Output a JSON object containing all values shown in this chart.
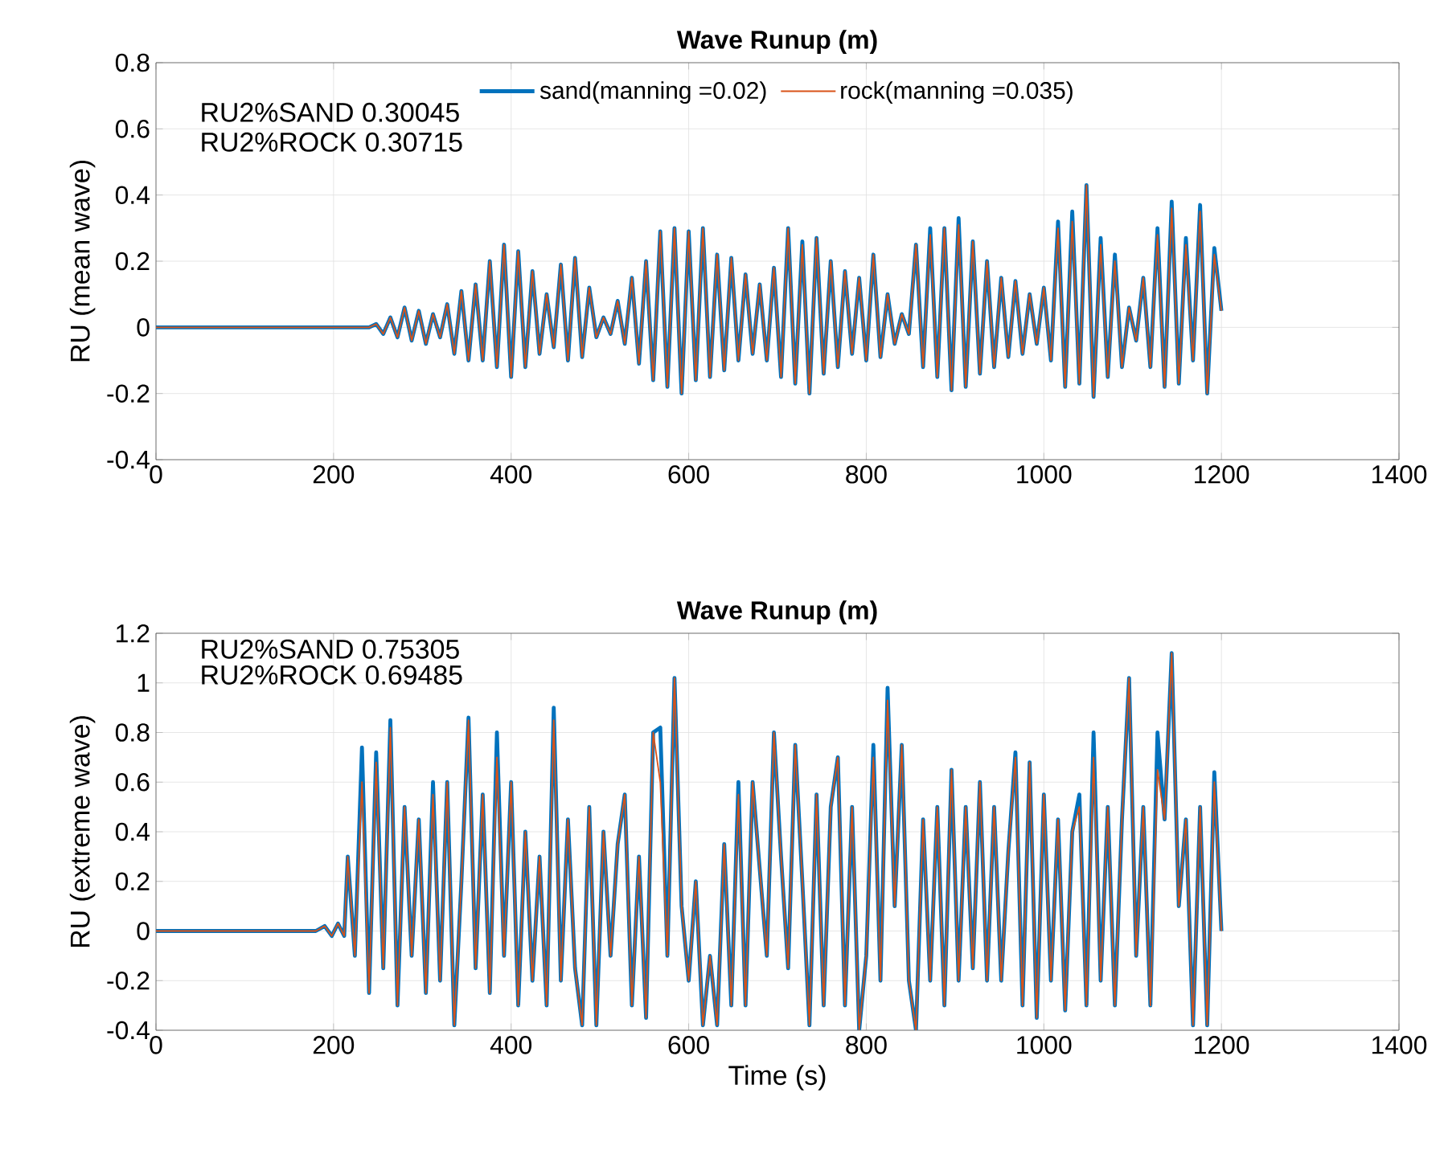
{
  "chart_data": [
    {
      "type": "line",
      "title": "Wave Runup (m)",
      "ylabel": "RU (mean wave)",
      "xlim": [
        0,
        1400
      ],
      "ylim": [
        -0.4,
        0.8
      ],
      "xticks": [
        0,
        200,
        400,
        600,
        800,
        1000,
        1200,
        1400
      ],
      "yticks": [
        -0.4,
        -0.2,
        0,
        0.2,
        0.4,
        0.6,
        0.8
      ],
      "grid": true,
      "legend": "top",
      "annotations": [
        "RU2%SAND 0.30045",
        "RU2%ROCK 0.30715"
      ],
      "x": [
        0,
        200,
        240,
        248,
        256,
        264,
        272,
        280,
        288,
        296,
        304,
        312,
        320,
        328,
        336,
        344,
        352,
        360,
        368,
        376,
        384,
        392,
        400,
        408,
        416,
        424,
        432,
        440,
        448,
        456,
        464,
        472,
        480,
        488,
        496,
        504,
        512,
        520,
        528,
        536,
        544,
        552,
        560,
        568,
        576,
        584,
        592,
        600,
        608,
        616,
        624,
        632,
        640,
        648,
        656,
        664,
        672,
        680,
        688,
        696,
        704,
        712,
        720,
        728,
        736,
        744,
        752,
        760,
        768,
        776,
        784,
        792,
        800,
        808,
        816,
        824,
        832,
        840,
        848,
        856,
        864,
        872,
        880,
        888,
        896,
        904,
        912,
        920,
        928,
        936,
        944,
        952,
        960,
        968,
        976,
        984,
        992,
        1000,
        1008,
        1016,
        1024,
        1032,
        1040,
        1048,
        1056,
        1064,
        1072,
        1080,
        1088,
        1096,
        1104,
        1112,
        1120,
        1128,
        1136,
        1144,
        1152,
        1160,
        1168,
        1176,
        1184,
        1192,
        1200
      ],
      "series": [
        {
          "name": "sand(manning =0.02)",
          "color": "#0072bd",
          "values": [
            0,
            0,
            0,
            0.01,
            -0.02,
            0.03,
            -0.03,
            0.06,
            -0.04,
            0.05,
            -0.05,
            0.04,
            -0.03,
            0.07,
            -0.08,
            0.11,
            -0.1,
            0.13,
            -0.1,
            0.2,
            -0.12,
            0.25,
            -0.15,
            0.23,
            -0.12,
            0.17,
            -0.08,
            0.1,
            -0.06,
            0.19,
            -0.1,
            0.21,
            -0.09,
            0.12,
            -0.03,
            0.03,
            -0.02,
            0.08,
            -0.05,
            0.15,
            -0.11,
            0.2,
            -0.16,
            0.29,
            -0.18,
            0.3,
            -0.2,
            0.29,
            -0.16,
            0.3,
            -0.15,
            0.22,
            -0.13,
            0.21,
            -0.1,
            0.16,
            -0.08,
            0.13,
            -0.1,
            0.18,
            -0.15,
            0.3,
            -0.17,
            0.26,
            -0.2,
            0.27,
            -0.14,
            0.2,
            -0.12,
            0.17,
            -0.08,
            0.15,
            -0.1,
            0.22,
            -0.09,
            0.1,
            -0.05,
            0.04,
            -0.02,
            0.25,
            -0.12,
            0.3,
            -0.15,
            0.3,
            -0.19,
            0.33,
            -0.18,
            0.26,
            -0.14,
            0.2,
            -0.12,
            0.15,
            -0.09,
            0.14,
            -0.08,
            0.1,
            -0.05,
            0.12,
            -0.1,
            0.32,
            -0.18,
            0.35,
            -0.17,
            0.43,
            -0.21,
            0.27,
            -0.15,
            0.22,
            -0.12,
            0.06,
            -0.04,
            0.15,
            -0.12,
            0.3,
            -0.18,
            0.38,
            -0.17,
            0.27,
            -0.1,
            0.37,
            -0.2,
            0.24,
            0.05
          ]
        },
        {
          "name": "rock(manning =0.035)",
          "color": "#d95319",
          "values": [
            0,
            0,
            0,
            0.01,
            -0.02,
            0.03,
            -0.03,
            0.06,
            -0.04,
            0.05,
            -0.05,
            0.04,
            -0.03,
            0.07,
            -0.08,
            0.11,
            -0.1,
            0.13,
            -0.1,
            0.2,
            -0.12,
            0.25,
            -0.15,
            0.23,
            -0.12,
            0.17,
            -0.08,
            0.1,
            -0.06,
            0.19,
            -0.1,
            0.21,
            -0.09,
            0.12,
            -0.03,
            0.03,
            -0.02,
            0.08,
            -0.05,
            0.15,
            -0.11,
            0.2,
            -0.16,
            0.29,
            -0.18,
            0.3,
            -0.2,
            0.29,
            -0.16,
            0.3,
            -0.15,
            0.22,
            -0.13,
            0.21,
            -0.1,
            0.16,
            -0.08,
            0.13,
            -0.1,
            0.18,
            -0.15,
            0.3,
            -0.17,
            0.25,
            -0.2,
            0.27,
            -0.14,
            0.2,
            -0.12,
            0.17,
            -0.08,
            0.15,
            -0.1,
            0.22,
            -0.09,
            0.1,
            -0.05,
            0.04,
            -0.02,
            0.25,
            -0.12,
            0.28,
            -0.15,
            0.3,
            -0.19,
            0.31,
            -0.18,
            0.26,
            -0.14,
            0.2,
            -0.12,
            0.15,
            -0.09,
            0.14,
            -0.08,
            0.1,
            -0.05,
            0.12,
            -0.1,
            0.3,
            -0.18,
            0.32,
            -0.17,
            0.43,
            -0.21,
            0.25,
            -0.15,
            0.2,
            -0.12,
            0.06,
            -0.04,
            0.15,
            -0.12,
            0.28,
            -0.18,
            0.36,
            -0.17,
            0.25,
            -0.1,
            0.35,
            -0.2,
            0.22,
            0.05
          ]
        }
      ]
    },
    {
      "type": "line",
      "title": "Wave Runup (m)",
      "xlabel": "Time (s)",
      "ylabel": "RU (extreme wave)",
      "xlim": [
        0,
        1400
      ],
      "ylim": [
        -0.4,
        1.2
      ],
      "xticks": [
        0,
        200,
        400,
        600,
        800,
        1000,
        1200,
        1400
      ],
      "yticks": [
        -0.4,
        -0.2,
        0,
        0.2,
        0.4,
        0.6,
        0.8,
        1,
        1.2
      ],
      "grid": true,
      "annotations": [
        "RU2%SAND 0.75305",
        "RU2%ROCK 0.69485"
      ],
      "x": [
        0,
        180,
        190,
        198,
        205,
        212,
        216,
        224,
        232,
        240,
        248,
        256,
        264,
        272,
        280,
        288,
        296,
        304,
        312,
        320,
        328,
        336,
        344,
        352,
        360,
        368,
        376,
        384,
        392,
        400,
        408,
        416,
        424,
        432,
        440,
        448,
        456,
        464,
        472,
        480,
        488,
        496,
        504,
        512,
        520,
        528,
        536,
        544,
        552,
        560,
        568,
        576,
        584,
        592,
        600,
        608,
        616,
        624,
        632,
        640,
        648,
        656,
        664,
        672,
        680,
        688,
        696,
        704,
        712,
        720,
        728,
        736,
        744,
        752,
        760,
        768,
        776,
        784,
        792,
        800,
        808,
        816,
        824,
        832,
        840,
        848,
        856,
        864,
        872,
        880,
        888,
        896,
        904,
        912,
        920,
        928,
        936,
        944,
        952,
        960,
        968,
        976,
        984,
        992,
        1000,
        1008,
        1016,
        1024,
        1032,
        1040,
        1048,
        1056,
        1064,
        1072,
        1080,
        1088,
        1096,
        1104,
        1112,
        1120,
        1128,
        1136,
        1144,
        1152,
        1160,
        1168,
        1176,
        1184,
        1192,
        1200
      ],
      "series": [
        {
          "color": "#0072bd",
          "values": [
            0,
            0,
            0.02,
            -0.02,
            0.03,
            -0.02,
            0.3,
            -0.1,
            0.74,
            -0.25,
            0.72,
            -0.15,
            0.85,
            -0.3,
            0.5,
            -0.1,
            0.45,
            -0.25,
            0.6,
            -0.2,
            0.6,
            -0.38,
            0.2,
            0.86,
            -0.15,
            0.55,
            -0.25,
            0.8,
            -0.1,
            0.6,
            -0.3,
            0.4,
            -0.2,
            0.3,
            -0.3,
            0.9,
            -0.2,
            0.45,
            -0.15,
            -0.38,
            0.5,
            -0.38,
            0.4,
            -0.1,
            0.35,
            0.55,
            -0.3,
            0.3,
            -0.35,
            0.8,
            0.82,
            -0.1,
            1.02,
            0.1,
            -0.2,
            0.2,
            -0.38,
            -0.1,
            -0.38,
            0.35,
            -0.3,
            0.6,
            -0.3,
            0.6,
            0.25,
            -0.1,
            0.8,
            0.3,
            -0.15,
            0.75,
            0.2,
            -0.38,
            0.55,
            -0.3,
            0.5,
            0.7,
            -0.3,
            0.5,
            -0.4,
            -0.1,
            0.75,
            -0.2,
            0.98,
            0.1,
            0.75,
            -0.2,
            -0.4,
            0.45,
            -0.2,
            0.5,
            -0.3,
            0.65,
            -0.2,
            0.5,
            -0.15,
            0.6,
            -0.2,
            0.5,
            -0.2,
            0.32,
            0.72,
            -0.3,
            0.68,
            -0.35,
            0.55,
            -0.2,
            0.45,
            -0.32,
            0.4,
            0.55,
            -0.3,
            0.8,
            -0.2,
            0.5,
            -0.3,
            0.45,
            1.02,
            -0.1,
            0.5,
            -0.3,
            0.8,
            0.45,
            1.12,
            0.1,
            0.45,
            -0.38,
            0.5,
            -0.38,
            0.64,
            0.0
          ]
        },
        {
          "color": "#d95319",
          "values": [
            0,
            0,
            0.02,
            -0.02,
            0.03,
            -0.02,
            0.3,
            -0.1,
            0.6,
            -0.25,
            0.68,
            -0.15,
            0.82,
            -0.3,
            0.5,
            -0.1,
            0.45,
            -0.25,
            0.55,
            -0.2,
            0.6,
            -0.38,
            0.2,
            0.85,
            -0.15,
            0.55,
            -0.25,
            0.7,
            -0.1,
            0.6,
            -0.3,
            0.4,
            -0.2,
            0.3,
            -0.3,
            0.85,
            -0.2,
            0.45,
            -0.15,
            -0.38,
            0.5,
            -0.38,
            0.4,
            -0.1,
            0.35,
            0.55,
            -0.3,
            0.3,
            -0.35,
            0.8,
            0.6,
            -0.1,
            1.02,
            0.1,
            -0.2,
            0.2,
            -0.38,
            -0.1,
            -0.38,
            0.35,
            -0.3,
            0.55,
            -0.3,
            0.6,
            0.25,
            -0.1,
            0.8,
            0.3,
            -0.15,
            0.75,
            0.2,
            -0.38,
            0.55,
            -0.3,
            0.5,
            0.7,
            -0.3,
            0.5,
            -0.4,
            -0.1,
            0.7,
            -0.2,
            0.93,
            0.1,
            0.75,
            -0.2,
            -0.4,
            0.45,
            -0.2,
            0.5,
            -0.3,
            0.65,
            -0.2,
            0.5,
            -0.15,
            0.6,
            -0.2,
            0.5,
            -0.2,
            0.32,
            0.7,
            -0.3,
            0.68,
            -0.35,
            0.55,
            -0.2,
            0.45,
            -0.32,
            0.4,
            0.5,
            -0.3,
            0.7,
            -0.2,
            0.5,
            -0.3,
            0.45,
            1.02,
            -0.1,
            0.5,
            -0.3,
            0.65,
            0.45,
            1.12,
            0.1,
            0.45,
            -0.38,
            0.5,
            -0.38,
            0.6,
            0.0
          ]
        }
      ]
    }
  ]
}
